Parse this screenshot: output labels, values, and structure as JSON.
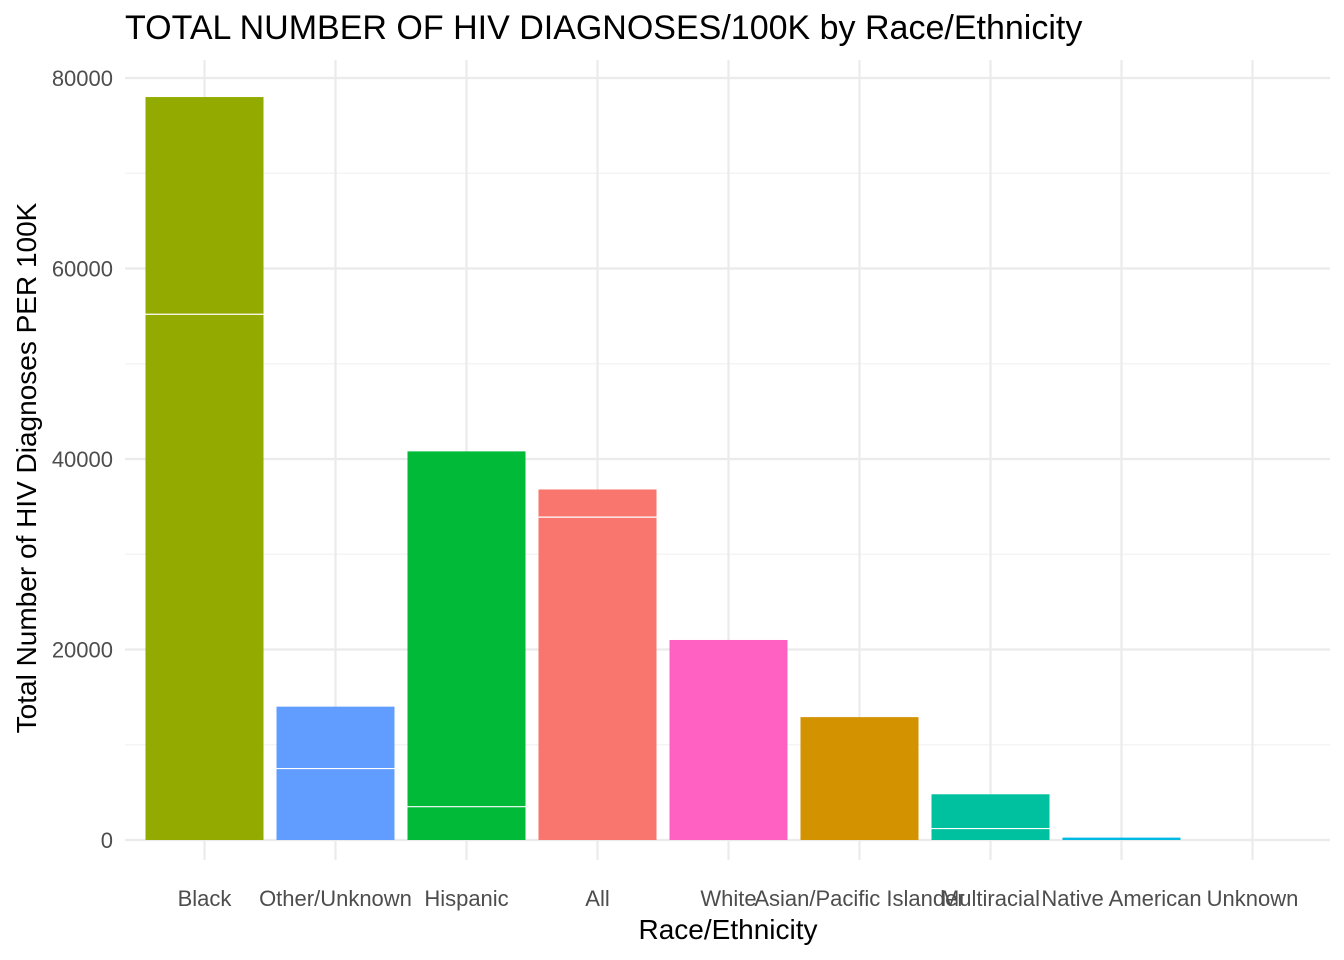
{
  "chart_data": {
    "type": "bar",
    "stacked": true,
    "title": "TOTAL NUMBER OF HIV DIAGNOSES/100K by Race/Ethnicity",
    "xlabel": "Race/Ethnicity",
    "ylabel": "Total Number of HIV Diagnoses PER 100K",
    "ylim": [
      0,
      80000
    ],
    "y_ticks": [
      0,
      20000,
      40000,
      60000,
      80000
    ],
    "grid": true,
    "legend": "none",
    "categories": [
      "Black",
      "Other/Unknown",
      "Hispanic",
      "All",
      "White",
      "Asian/Pacific Islander",
      "Multiracial",
      "Native American",
      "Unknown"
    ],
    "colors": [
      "#93AA00",
      "#619CFF",
      "#00BA38",
      "#F8766D",
      "#FF61C3",
      "#D39200",
      "#00C19F",
      "#00B9E3",
      "#DB72FB"
    ],
    "segments": [
      [
        55200,
        22800
      ],
      [
        7500,
        6500
      ],
      [
        3500,
        37300
      ],
      [
        33900,
        2900
      ],
      [
        21000
      ],
      [
        12900
      ],
      [
        1200,
        3600
      ],
      [
        250
      ],
      [
        0
      ]
    ],
    "values": [
      78000,
      14000,
      40800,
      36800,
      21000,
      12900,
      4800,
      250,
      0
    ]
  }
}
